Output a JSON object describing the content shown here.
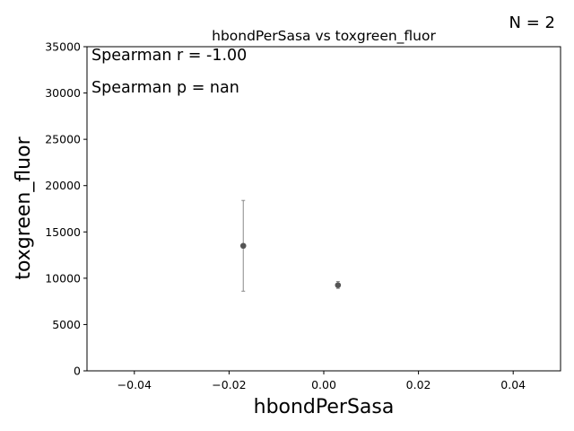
{
  "n_label": "N = 2",
  "stats": {
    "spearman_r": "Spearman r = -1.00",
    "spearman_p": "Spearman p = nan"
  },
  "chart_data": {
    "type": "scatter",
    "title": "hbondPerSasa vs toxgreen_fluor",
    "xlabel": "hbondPerSasa",
    "ylabel": "toxgreen_fluor",
    "xlim": [
      -0.05,
      0.05
    ],
    "ylim": [
      0,
      35000
    ],
    "xticks": [
      -0.04,
      -0.02,
      0.0,
      0.02,
      0.04
    ],
    "xtick_labels": [
      "−0.04",
      "−0.02",
      "0.00",
      "0.02",
      "0.04"
    ],
    "yticks": [
      0,
      5000,
      10000,
      15000,
      20000,
      25000,
      30000,
      35000
    ],
    "ytick_labels": [
      "0",
      "5000",
      "10000",
      "15000",
      "20000",
      "25000",
      "30000",
      "35000"
    ],
    "grid": false,
    "points": [
      {
        "x": -0.017,
        "y": 13500,
        "err_low": 8600,
        "err_high": 18400
      },
      {
        "x": 0.003,
        "y": 9250,
        "err_low": 8900,
        "err_high": 9650
      }
    ],
    "colors": {
      "marker": "#555555",
      "errorbar": "#888888",
      "axis": "#000000"
    }
  }
}
